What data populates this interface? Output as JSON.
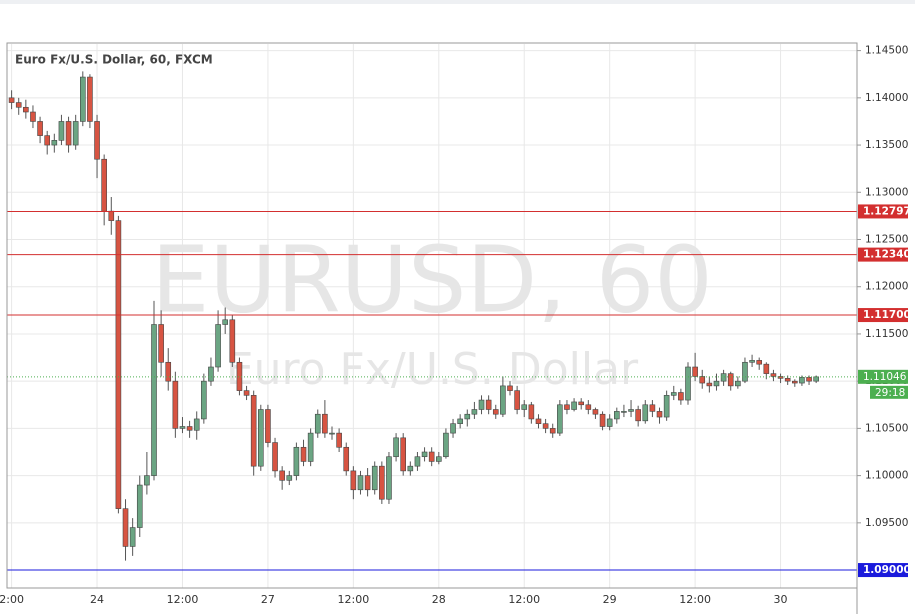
{
  "chart_data": {
    "type": "candlestick",
    "title": "Euro Fx/U.S. Dollar, 60, FXCM",
    "watermark": "EURUSD, 60",
    "watermark_subtitle": "Euro Fx/U.S. Dollar",
    "up_color": "#6ba583",
    "down_color": "#d75442",
    "categories": [
      "2:00",
      null,
      null,
      null,
      null,
      null,
      null,
      null,
      null,
      null,
      null,
      null,
      "24",
      null,
      null,
      null,
      null,
      null,
      null,
      null,
      null,
      null,
      null,
      null,
      "12:00",
      null,
      null,
      null,
      null,
      null,
      null,
      null,
      null,
      null,
      null,
      null,
      "27",
      null,
      null,
      null,
      null,
      null,
      null,
      null,
      null,
      null,
      null,
      null,
      "12:00",
      null,
      null,
      null,
      null,
      null,
      null,
      null,
      null,
      null,
      null,
      null,
      "28",
      null,
      null,
      null,
      null,
      null,
      null,
      null,
      null,
      null,
      null,
      null,
      "12:00",
      null,
      null,
      null,
      null,
      null,
      null,
      null,
      null,
      null,
      null,
      null,
      "29",
      null,
      null,
      null,
      null,
      null,
      null,
      null,
      null,
      null,
      null,
      null,
      "12:00",
      null,
      null,
      null,
      null,
      null,
      null,
      null,
      null,
      null,
      null,
      null,
      "30",
      null,
      null,
      null,
      null,
      null
    ],
    "ohlc": [
      [
        1.14,
        1.1408,
        1.1388,
        1.1395
      ],
      [
        1.1395,
        1.14,
        1.1382,
        1.139
      ],
      [
        1.139,
        1.1398,
        1.1378,
        1.1385
      ],
      [
        1.1385,
        1.1392,
        1.1368,
        1.1375
      ],
      [
        1.1375,
        1.138,
        1.1352,
        1.136
      ],
      [
        1.136,
        1.1365,
        1.134,
        1.135
      ],
      [
        1.135,
        1.1362,
        1.1342,
        1.1355
      ],
      [
        1.1355,
        1.1382,
        1.135,
        1.1375
      ],
      [
        1.1375,
        1.138,
        1.1342,
        1.135
      ],
      [
        1.135,
        1.1382,
        1.1345,
        1.1375
      ],
      [
        1.1375,
        1.1428,
        1.137,
        1.1422
      ],
      [
        1.1422,
        1.1425,
        1.1368,
        1.1375
      ],
      [
        1.1375,
        1.1382,
        1.1315,
        1.1335
      ],
      [
        1.1335,
        1.134,
        1.1265,
        1.128
      ],
      [
        1.128,
        1.1295,
        1.1255,
        1.127
      ],
      [
        1.127,
        1.1275,
        1.096,
        1.0965
      ],
      [
        1.0965,
        1.0975,
        1.091,
        1.0925
      ],
      [
        1.0925,
        1.0955,
        1.0915,
        1.0945
      ],
      [
        1.0945,
        1.1,
        1.0935,
        1.099
      ],
      [
        1.099,
        1.1025,
        1.098,
        1.1
      ],
      [
        1.1,
        1.1185,
        1.0995,
        1.116
      ],
      [
        1.116,
        1.1175,
        1.1105,
        1.112
      ],
      [
        1.112,
        1.1135,
        1.109,
        1.11
      ],
      [
        1.11,
        1.111,
        1.104,
        1.105
      ],
      [
        1.105,
        1.1062,
        1.1045,
        1.1052
      ],
      [
        1.1052,
        1.1058,
        1.104,
        1.1048
      ],
      [
        1.1048,
        1.1068,
        1.1038,
        1.106
      ],
      [
        1.106,
        1.1108,
        1.1055,
        1.11
      ],
      [
        1.11,
        1.1125,
        1.1095,
        1.1115
      ],
      [
        1.1115,
        1.1175,
        1.111,
        1.116
      ],
      [
        1.116,
        1.1178,
        1.115,
        1.1165
      ],
      [
        1.1165,
        1.117,
        1.1115,
        1.112
      ],
      [
        1.112,
        1.1125,
        1.1085,
        1.109
      ],
      [
        1.109,
        1.1095,
        1.108,
        1.1085
      ],
      [
        1.1085,
        1.109,
        1.1,
        1.101
      ],
      [
        1.101,
        1.1075,
        1.1005,
        1.107
      ],
      [
        1.107,
        1.1075,
        1.103,
        1.1035
      ],
      [
        1.1035,
        1.104,
        1.0998,
        1.1005
      ],
      [
        1.1005,
        1.101,
        1.0985,
        1.0995
      ],
      [
        1.0995,
        1.1005,
        1.099,
        1.1
      ],
      [
        1.1,
        1.1035,
        1.0995,
        1.103
      ],
      [
        1.103,
        1.1038,
        1.101,
        1.1015
      ],
      [
        1.1015,
        1.105,
        1.101,
        1.1045
      ],
      [
        1.1045,
        1.107,
        1.104,
        1.1065
      ],
      [
        1.1065,
        1.108,
        1.104,
        1.1045
      ],
      [
        1.1045,
        1.1052,
        1.1038,
        1.1045
      ],
      [
        1.1045,
        1.105,
        1.1025,
        1.103
      ],
      [
        1.103,
        1.1035,
        1.1,
        1.1005
      ],
      [
        1.1005,
        1.101,
        1.0975,
        1.0985
      ],
      [
        1.0985,
        1.1005,
        1.098,
        1.1
      ],
      [
        1.1,
        1.1008,
        1.0978,
        1.0985
      ],
      [
        1.0985,
        1.1015,
        1.098,
        1.101
      ],
      [
        1.101,
        1.1015,
        1.097,
        1.0975
      ],
      [
        1.0975,
        1.1025,
        1.097,
        1.102
      ],
      [
        1.102,
        1.1045,
        1.1015,
        1.104
      ],
      [
        1.104,
        1.1045,
        1.1,
        1.1005
      ],
      [
        1.1005,
        1.1015,
        1.1,
        1.101
      ],
      [
        1.101,
        1.1025,
        1.1005,
        1.102
      ],
      [
        1.102,
        1.103,
        1.1015,
        1.1025
      ],
      [
        1.1025,
        1.103,
        1.101,
        1.1015
      ],
      [
        1.1015,
        1.1025,
        1.1012,
        1.102
      ],
      [
        1.102,
        1.105,
        1.1018,
        1.1045
      ],
      [
        1.1045,
        1.106,
        1.104,
        1.1055
      ],
      [
        1.1055,
        1.1065,
        1.105,
        1.106
      ],
      [
        1.106,
        1.107,
        1.1052,
        1.1065
      ],
      [
        1.1065,
        1.1078,
        1.106,
        1.107
      ],
      [
        1.107,
        1.1085,
        1.1065,
        1.108
      ],
      [
        1.108,
        1.1085,
        1.1065,
        1.107
      ],
      [
        1.107,
        1.1075,
        1.106,
        1.1065
      ],
      [
        1.1065,
        1.1105,
        1.1062,
        1.1095
      ],
      [
        1.1095,
        1.11,
        1.1085,
        1.109
      ],
      [
        1.109,
        1.1095,
        1.1065,
        1.107
      ],
      [
        1.107,
        1.108,
        1.1062,
        1.1075
      ],
      [
        1.1075,
        1.1078,
        1.1055,
        1.106
      ],
      [
        1.106,
        1.1065,
        1.105,
        1.1055
      ],
      [
        1.1055,
        1.106,
        1.1045,
        1.105
      ],
      [
        1.105,
        1.1055,
        1.104,
        1.1045
      ],
      [
        1.1045,
        1.108,
        1.1042,
        1.1075
      ],
      [
        1.1075,
        1.108,
        1.1065,
        1.107
      ],
      [
        1.107,
        1.1082,
        1.1068,
        1.1078
      ],
      [
        1.1078,
        1.1082,
        1.107,
        1.1075
      ],
      [
        1.1075,
        1.108,
        1.1065,
        1.107
      ],
      [
        1.107,
        1.1072,
        1.106,
        1.1065
      ],
      [
        1.1065,
        1.1068,
        1.1048,
        1.1052
      ],
      [
        1.1052,
        1.1065,
        1.1048,
        1.106
      ],
      [
        1.106,
        1.1072,
        1.1055,
        1.1068
      ],
      [
        1.1068,
        1.1075,
        1.1062,
        1.1068
      ],
      [
        1.1068,
        1.108,
        1.1062,
        1.107
      ],
      [
        1.107,
        1.1074,
        1.1052,
        1.1058
      ],
      [
        1.1058,
        1.108,
        1.1055,
        1.1075
      ],
      [
        1.1075,
        1.108,
        1.1062,
        1.1068
      ],
      [
        1.1068,
        1.1072,
        1.1055,
        1.1062
      ],
      [
        1.1062,
        1.109,
        1.1058,
        1.1085
      ],
      [
        1.1085,
        1.1095,
        1.108,
        1.1088
      ],
      [
        1.1088,
        1.1092,
        1.1075,
        1.108
      ],
      [
        1.108,
        1.112,
        1.1075,
        1.1115
      ],
      [
        1.1115,
        1.113,
        1.11,
        1.1105
      ],
      [
        1.1105,
        1.1112,
        1.1092,
        1.1098
      ],
      [
        1.1098,
        1.1105,
        1.1088,
        1.1095
      ],
      [
        1.1095,
        1.1108,
        1.109,
        1.11
      ],
      [
        1.11,
        1.1112,
        1.1095,
        1.1108
      ],
      [
        1.1108,
        1.111,
        1.109,
        1.1095
      ],
      [
        1.1095,
        1.1105,
        1.1092,
        1.11
      ],
      [
        1.11,
        1.1125,
        1.1098,
        1.112
      ],
      [
        1.112,
        1.1128,
        1.1115,
        1.1122
      ],
      [
        1.1122,
        1.1125,
        1.1112,
        1.1118
      ],
      [
        1.1118,
        1.112,
        1.1102,
        1.1108
      ],
      [
        1.1108,
        1.1112,
        1.11,
        1.1105
      ],
      [
        1.1105,
        1.1108,
        1.1098,
        1.1103
      ],
      [
        1.1103,
        1.1106,
        1.1096,
        1.11
      ],
      [
        1.11,
        1.1102,
        1.1094,
        1.1098
      ],
      [
        1.1098,
        1.1106,
        1.1095,
        1.1104
      ],
      [
        1.1104,
        1.1106,
        1.1096,
        1.11
      ],
      [
        1.11,
        1.1106,
        1.1098,
        1.11046
      ]
    ],
    "ylim": [
      1.0881,
      1.1457
    ],
    "yticks": [
      {
        "value": 1.095,
        "label": "1.09500"
      },
      {
        "value": 1.1,
        "label": "1.10000"
      },
      {
        "value": 1.105,
        "label": "1.10500"
      },
      {
        "value": 1.11,
        "label": "1.11000"
      },
      {
        "value": 1.115,
        "label": "1.11500"
      },
      {
        "value": 1.12,
        "label": "1.12000"
      },
      {
        "value": 1.125,
        "label": "1.12500"
      },
      {
        "value": 1.13,
        "label": "1.13000"
      },
      {
        "value": 1.135,
        "label": "1.13500"
      },
      {
        "value": 1.14,
        "label": "1.14000"
      },
      {
        "value": 1.145,
        "label": "1.14500"
      }
    ],
    "grid": true,
    "levels": [
      {
        "value": 1.12797,
        "color": "#d32f2f"
      },
      {
        "value": 1.1234,
        "label": "1.12340",
        "color": "#d32f2f"
      },
      {
        "value": 1.117,
        "label": "1.11700",
        "color": "#d32f2f"
      },
      {
        "value": 1.09,
        "label": "1.09000",
        "color": "#1a1adc"
      }
    ],
    "last_price": 1.11046,
    "last_price_color": "#4caf50",
    "countdown": "29:18"
  }
}
